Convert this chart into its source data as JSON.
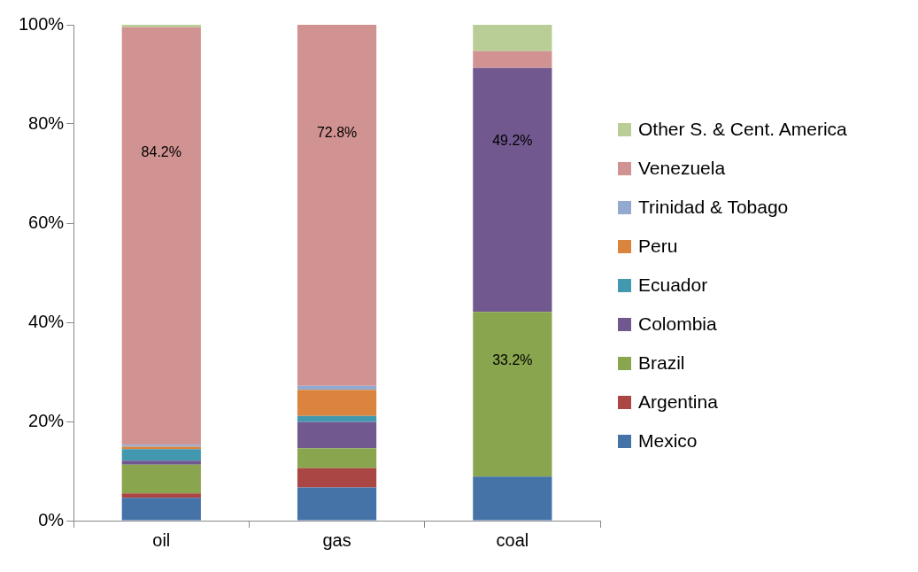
{
  "chart_data": {
    "type": "bar",
    "stacked": true,
    "categories": [
      "oil",
      "gas",
      "coal"
    ],
    "ylim": [
      0,
      100
    ],
    "yticks": [
      {
        "value": 0,
        "label": "0%"
      },
      {
        "value": 20,
        "label": "20%"
      },
      {
        "value": 40,
        "label": "40%"
      },
      {
        "value": 60,
        "label": "60%"
      },
      {
        "value": 80,
        "label": "80%"
      },
      {
        "value": 100,
        "label": "100%"
      }
    ],
    "legend": "right",
    "series": [
      {
        "name": "Mexico",
        "color": "#4572a7",
        "values": [
          4.6,
          6.7,
          8.9
        ]
      },
      {
        "name": "Argentina",
        "color": "#aa4643",
        "values": [
          0.9,
          3.9,
          0
        ]
      },
      {
        "name": "Brazil",
        "color": "#89a54e",
        "values": [
          5.8,
          4.0,
          33.2
        ],
        "value_labels": [
          null,
          null,
          "33.2%"
        ]
      },
      {
        "name": "Colombia",
        "color": "#71588f",
        "values": [
          0.8,
          5.3,
          49.2
        ],
        "value_labels": [
          null,
          null,
          "49.2%"
        ]
      },
      {
        "name": "Ecuador",
        "color": "#4198af",
        "values": [
          2.3,
          1.2,
          0
        ]
      },
      {
        "name": "Peru",
        "color": "#db843d",
        "values": [
          0.5,
          5.3,
          0
        ]
      },
      {
        "name": "Trinidad & Tobago",
        "color": "#93a9cf",
        "values": [
          0.4,
          0.8,
          0
        ]
      },
      {
        "name": "Venezuela",
        "color": "#d19392",
        "values": [
          84.2,
          72.8,
          3.4
        ],
        "value_labels": [
          "84.2%",
          "72.8%",
          null
        ]
      },
      {
        "name": "Other S. & Cent. America",
        "color": "#b9cd96",
        "values": [
          0.5,
          0,
          5.3
        ]
      }
    ]
  }
}
